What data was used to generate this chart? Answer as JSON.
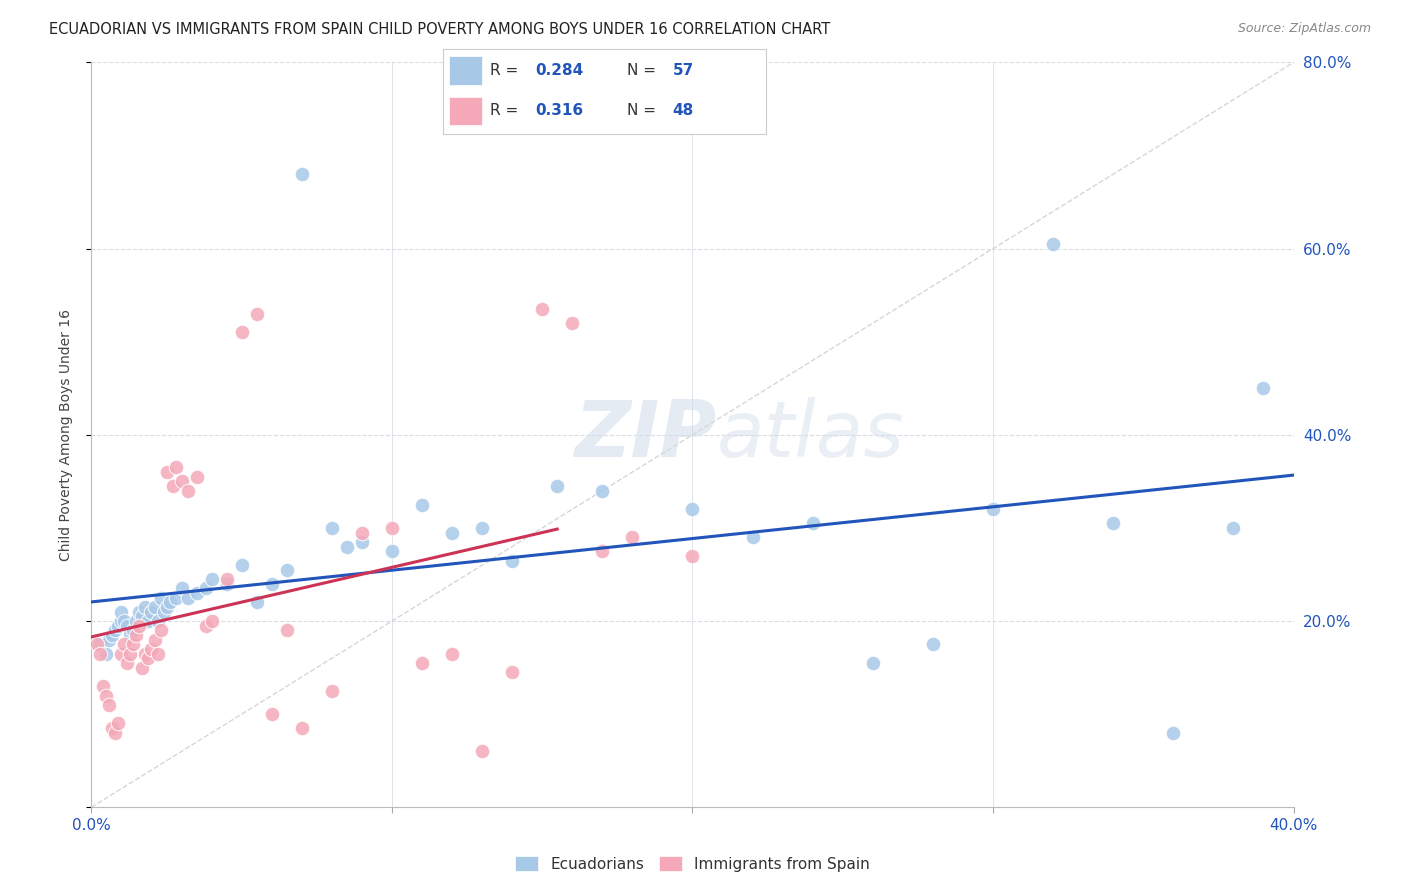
{
  "title": "ECUADORIAN VS IMMIGRANTS FROM SPAIN CHILD POVERTY AMONG BOYS UNDER 16 CORRELATION CHART",
  "source": "Source: ZipAtlas.com",
  "ylabel": "Child Poverty Among Boys Under 16",
  "xlim": [
    0.0,
    0.4
  ],
  "ylim": [
    0.0,
    0.8
  ],
  "series1_color": "#a8c8e8",
  "series2_color": "#f4a8b8",
  "series1_label": "Ecuadorians",
  "series2_label": "Immigrants from Spain",
  "trend1_color": "#2255bb",
  "trend2_color": "#cc3355",
  "diag_color": "#cccccc",
  "text_color": "#2255bb",
  "label_color": "#333333",
  "background_color": "#ffffff",
  "grid_color": "#d8dde8",
  "watermark_color": "#d0dce8",
  "series1_x": [
    0.003,
    0.005,
    0.006,
    0.007,
    0.008,
    0.009,
    0.01,
    0.01,
    0.011,
    0.012,
    0.013,
    0.014,
    0.015,
    0.016,
    0.017,
    0.018,
    0.019,
    0.02,
    0.021,
    0.022,
    0.023,
    0.024,
    0.025,
    0.026,
    0.028,
    0.03,
    0.032,
    0.035,
    0.038,
    0.04,
    0.045,
    0.05,
    0.055,
    0.06,
    0.065,
    0.07,
    0.08,
    0.085,
    0.09,
    0.1,
    0.11,
    0.12,
    0.13,
    0.14,
    0.155,
    0.17,
    0.2,
    0.22,
    0.24,
    0.26,
    0.28,
    0.3,
    0.32,
    0.34,
    0.36,
    0.38,
    0.39
  ],
  "series1_y": [
    0.175,
    0.165,
    0.18,
    0.185,
    0.19,
    0.195,
    0.2,
    0.21,
    0.2,
    0.195,
    0.185,
    0.19,
    0.2,
    0.21,
    0.205,
    0.215,
    0.2,
    0.21,
    0.215,
    0.2,
    0.225,
    0.21,
    0.215,
    0.22,
    0.225,
    0.235,
    0.225,
    0.23,
    0.235,
    0.245,
    0.24,
    0.26,
    0.22,
    0.24,
    0.255,
    0.68,
    0.3,
    0.28,
    0.285,
    0.275,
    0.325,
    0.295,
    0.3,
    0.265,
    0.345,
    0.34,
    0.32,
    0.29,
    0.305,
    0.155,
    0.175,
    0.32,
    0.605,
    0.305,
    0.08,
    0.3,
    0.45
  ],
  "series2_x": [
    0.002,
    0.003,
    0.004,
    0.005,
    0.006,
    0.007,
    0.008,
    0.009,
    0.01,
    0.011,
    0.012,
    0.013,
    0.014,
    0.015,
    0.016,
    0.017,
    0.018,
    0.019,
    0.02,
    0.021,
    0.022,
    0.023,
    0.025,
    0.027,
    0.028,
    0.03,
    0.032,
    0.035,
    0.038,
    0.04,
    0.045,
    0.05,
    0.055,
    0.06,
    0.065,
    0.07,
    0.08,
    0.09,
    0.1,
    0.11,
    0.12,
    0.13,
    0.14,
    0.15,
    0.16,
    0.17,
    0.18,
    0.2
  ],
  "series2_y": [
    0.175,
    0.165,
    0.13,
    0.12,
    0.11,
    0.085,
    0.08,
    0.09,
    0.165,
    0.175,
    0.155,
    0.165,
    0.175,
    0.185,
    0.195,
    0.15,
    0.165,
    0.16,
    0.17,
    0.18,
    0.165,
    0.19,
    0.36,
    0.345,
    0.365,
    0.35,
    0.34,
    0.355,
    0.195,
    0.2,
    0.245,
    0.51,
    0.53,
    0.1,
    0.19,
    0.085,
    0.125,
    0.295,
    0.3,
    0.155,
    0.165,
    0.06,
    0.145,
    0.535,
    0.52,
    0.275,
    0.29,
    0.27
  ],
  "trend2_xmax": 0.155
}
